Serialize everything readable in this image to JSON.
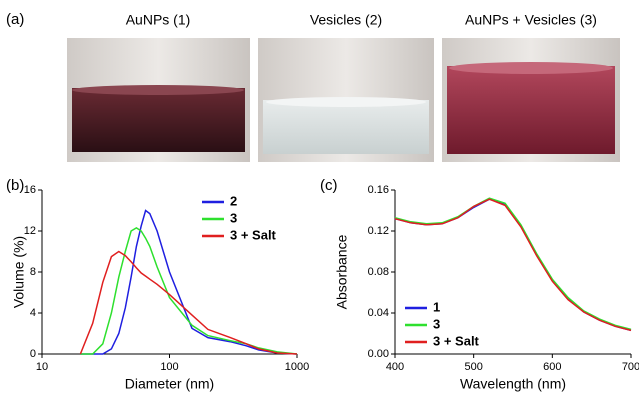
{
  "figure": {
    "panel_labels": [
      "(a)",
      "(b)",
      "(c)"
    ],
    "photo_captions": [
      "AuNPs (1)",
      "Vesicles (2)",
      "AuNPs + Vesicles (3)"
    ]
  },
  "chart_data": [
    {
      "type": "line",
      "xlabel": "Diameter (nm)",
      "ylabel": "Volume (%)",
      "xscale": "log",
      "xlim": [
        10,
        1000
      ],
      "xticks": [
        10,
        100,
        1000
      ],
      "ylim": [
        0,
        16
      ],
      "yticks": [
        0,
        4,
        8,
        12,
        16
      ],
      "legend": "upper right",
      "x": [
        20,
        25,
        30,
        35,
        40,
        45,
        50,
        55,
        60,
        65,
        70,
        80,
        100,
        150,
        200,
        300,
        400,
        500,
        700,
        1000
      ],
      "series": [
        {
          "name": "2",
          "color": "#1f1fe0",
          "values": [
            0,
            0,
            0,
            0.5,
            2,
            4.5,
            7.5,
            10.5,
            12.5,
            14,
            13.7,
            12,
            8,
            2.5,
            1.6,
            1.2,
            0.8,
            0.4,
            0.1,
            0
          ]
        },
        {
          "name": "3",
          "color": "#2ee02e",
          "values": [
            0,
            0,
            1,
            4,
            7.5,
            10,
            12,
            12.3,
            12,
            11.3,
            10.5,
            8.5,
            5.5,
            2.8,
            1.8,
            1.3,
            1.0,
            0.6,
            0.2,
            0
          ]
        },
        {
          "name": "3 + Salt",
          "color": "#e01f1f",
          "values": [
            0,
            3,
            7,
            9.5,
            10,
            9.6,
            9,
            8.4,
            7.9,
            7.6,
            7.3,
            6.8,
            5.8,
            3.8,
            2.4,
            1.6,
            1.0,
            0.5,
            0.1,
            0
          ]
        }
      ]
    },
    {
      "type": "line",
      "xlabel": "Wavelength (nm)",
      "ylabel": "Absorbance",
      "xlim": [
        400,
        700
      ],
      "xticks": [
        400,
        500,
        600,
        700
      ],
      "ylim": [
        0,
        0.16
      ],
      "yticks": [
        {
          "value": 0,
          "label": "0.00"
        },
        0.04,
        0.08,
        0.12,
        0.16
      ],
      "legend": "lower left",
      "x": [
        400,
        420,
        440,
        460,
        480,
        500,
        520,
        540,
        560,
        580,
        600,
        620,
        640,
        660,
        680,
        700
      ],
      "series": [
        {
          "name": "1",
          "color": "#1f1fe0",
          "values": [
            0.132,
            0.128,
            0.126,
            0.127,
            0.133,
            0.143,
            0.151,
            0.146,
            0.125,
            0.097,
            0.072,
            0.054,
            0.041,
            0.033,
            0.027,
            0.023
          ]
        },
        {
          "name": "3",
          "color": "#2ee02e",
          "values": [
            0.133,
            0.129,
            0.127,
            0.128,
            0.134,
            0.144,
            0.152,
            0.147,
            0.126,
            0.098,
            0.073,
            0.055,
            0.042,
            0.034,
            0.028,
            0.024
          ]
        },
        {
          "name": "3 + Salt",
          "color": "#e01f1f",
          "values": [
            0.132,
            0.128,
            0.126,
            0.127,
            0.133,
            0.144,
            0.151,
            0.145,
            0.124,
            0.096,
            0.071,
            0.053,
            0.041,
            0.033,
            0.027,
            0.023
          ]
        }
      ]
    }
  ]
}
